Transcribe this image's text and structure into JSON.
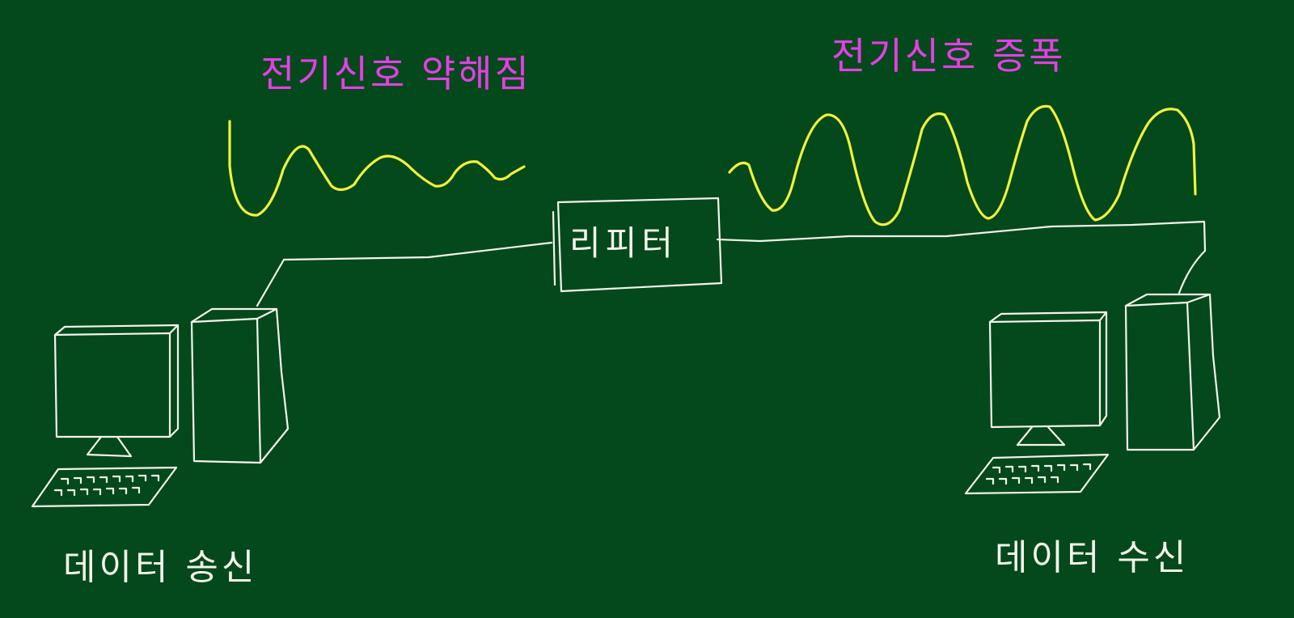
{
  "colors": {
    "board": "#04491b",
    "chalk": "#f4f4ec",
    "wave": "#f2f23a",
    "annotation": "#e63ee6"
  },
  "labels": {
    "weak_signal": "전기신호 약해짐",
    "amplified_signal": "전기신호 증폭",
    "repeater": "리피터",
    "sender": "데이터 송신",
    "receiver": "데이터 수신"
  },
  "icons": {
    "sender_computer": "desktop-computer-icon",
    "receiver_computer": "desktop-computer-icon"
  }
}
